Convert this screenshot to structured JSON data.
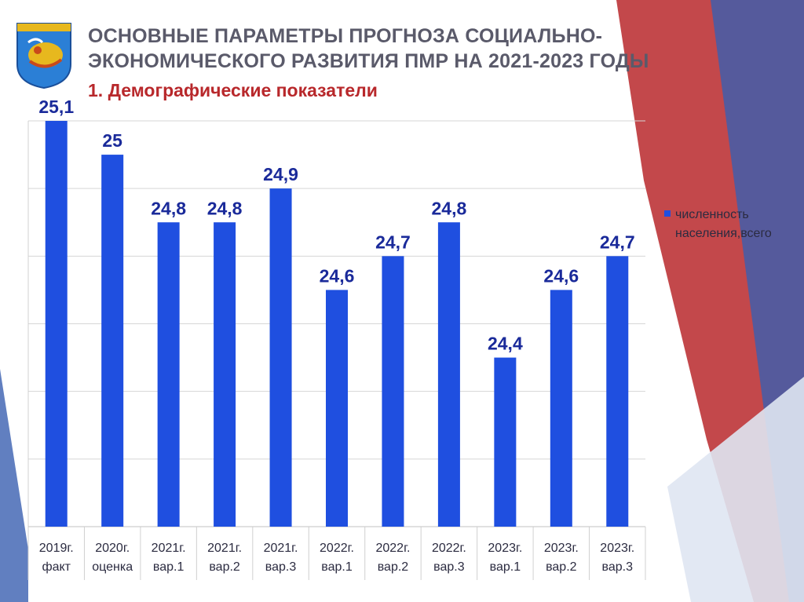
{
  "slide": {
    "title_line1": "ОСНОВНЫЕ ПАРАМЕТРЫ ПРОГНОЗА СОЦИАЛЬНО-",
    "title_line2": "ЭКОНОМИЧЕСКОГО РАЗВИТИЯ ПМР НА 2021-2023 ГОДЫ",
    "subtitle": "1. Демографические показатели",
    "logo_icon": "coat-of-arms-icon"
  },
  "colors": {
    "bar": "#1f4fe0",
    "value_label": "#1a2a9a",
    "title": "#5a5a6a",
    "subtitle": "#b8282b",
    "decor_red": "#b8282b",
    "decor_blue": "#3a5fb0"
  },
  "chart_data": {
    "type": "bar",
    "categories": [
      [
        "2019г.",
        "факт"
      ],
      [
        "2020г.",
        "оценка"
      ],
      [
        "2021г.",
        "вар.1"
      ],
      [
        "2021г.",
        "вар.2"
      ],
      [
        "2021г.",
        "вар.3"
      ],
      [
        "2022г.",
        "вар.1"
      ],
      [
        "2022г.",
        "вар.2"
      ],
      [
        "2022г.",
        "вар.3"
      ],
      [
        "2023г.",
        "вар.1"
      ],
      [
        "2023г.",
        "вар.2"
      ],
      [
        "2023г.",
        "вар.3"
      ]
    ],
    "series": [
      {
        "name": "численность населения,всего",
        "values": [
          25.1,
          25,
          24.8,
          24.8,
          24.9,
          24.6,
          24.7,
          24.8,
          24.4,
          24.6,
          24.7
        ],
        "labels": [
          "25,1",
          "25",
          "24,8",
          "24,8",
          "24,9",
          "24,6",
          "24,7",
          "24,8",
          "24,4",
          "24,6",
          "24,7"
        ]
      }
    ],
    "legend_lines": [
      "численность",
      "населения,всего"
    ],
    "legend_position": "right",
    "ylim": [
      23.9,
      25.1
    ],
    "grid": true,
    "y_tick_labels_shown": false
  }
}
